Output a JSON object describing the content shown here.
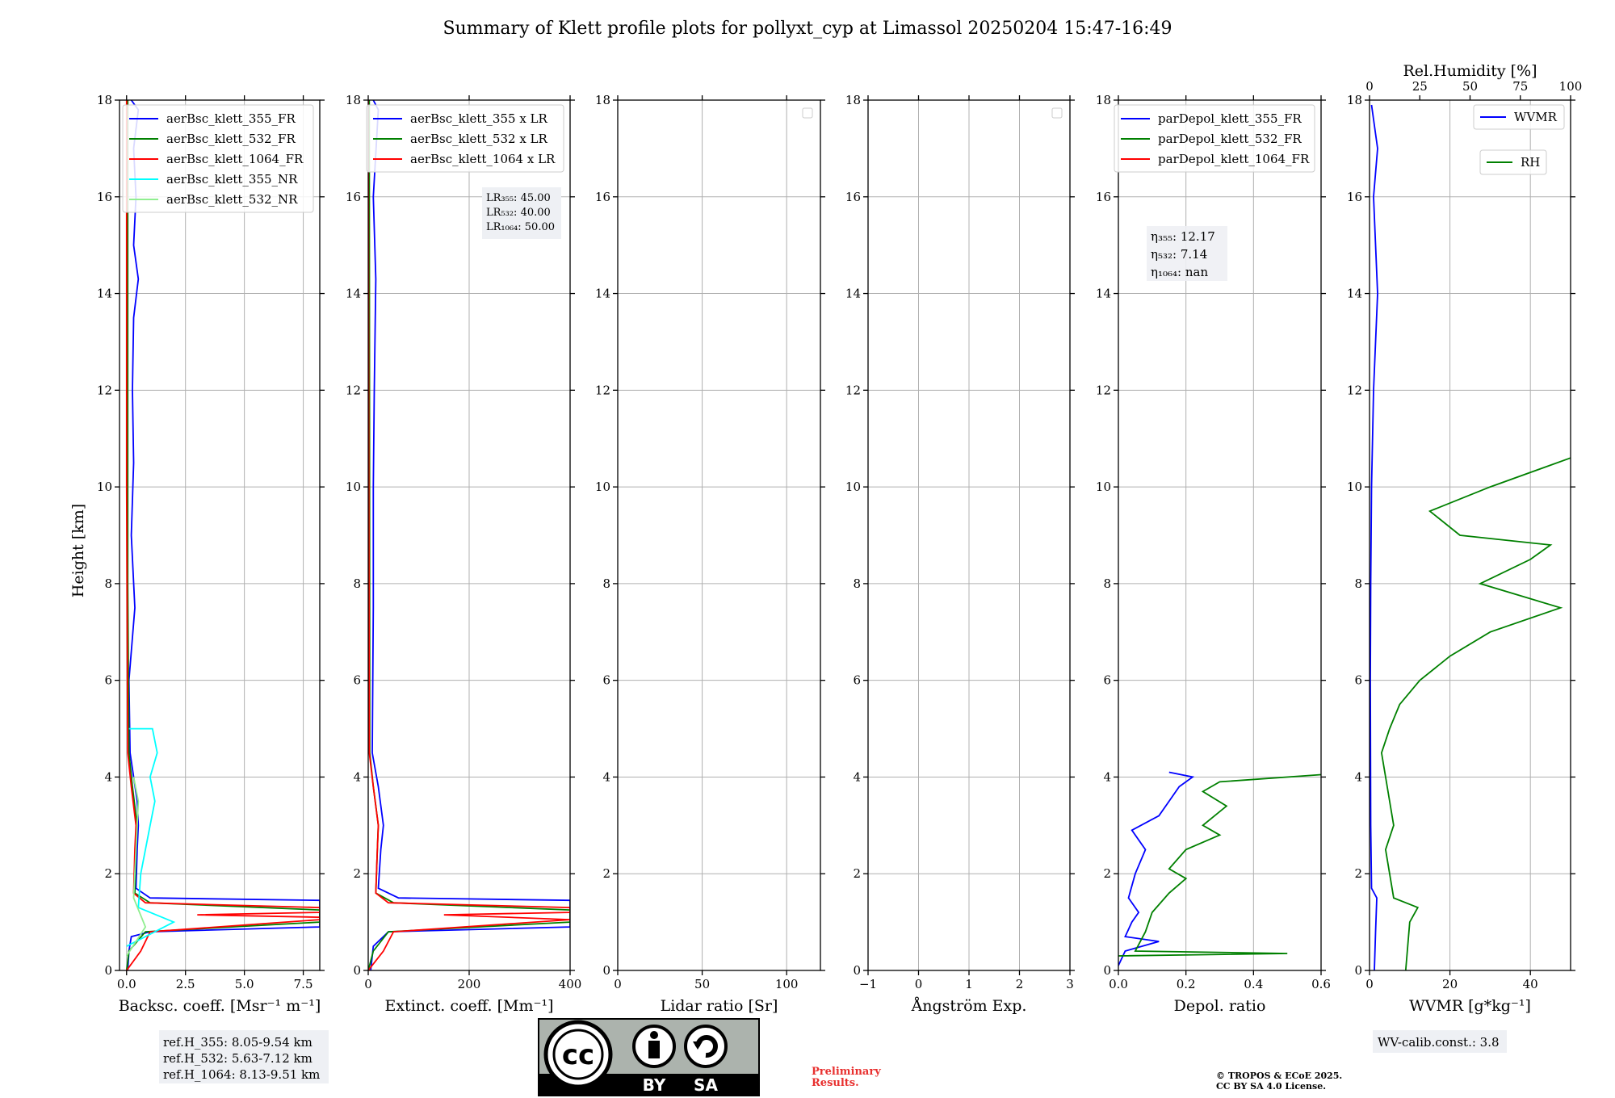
{
  "title": "Summary of Klett profile plots for pollyxt_cyp at Limassol 20250204 15:47-16:49",
  "colors": {
    "blue": "#0000ff",
    "green": "#008000",
    "red": "#ff0000",
    "cyan": "#00ffff",
    "lightgreen": "#90ee90"
  },
  "chart_data": [
    {
      "type": "line",
      "xlabel": "Backsc. coeff. [Msr⁻¹ m⁻¹]",
      "ylabel": "Height [km]",
      "xlim": [
        -0.3,
        8.2
      ],
      "ylim": [
        0,
        18
      ],
      "xticks": [
        0,
        2.5,
        5,
        7.5
      ],
      "xtick_labels": [
        "0.0",
        "2.5",
        "5.0",
        "7.5"
      ],
      "yticks": [
        0,
        2,
        4,
        6,
        8,
        10,
        12,
        14,
        16,
        18
      ],
      "grid": true,
      "legend_position": "upper right",
      "series": [
        {
          "name": "aerBsc_klett_355_FR",
          "color": "#0000ff",
          "points": [
            [
              0.05,
              0
            ],
            [
              0.1,
              0.4
            ],
            [
              0.2,
              0.7
            ],
            [
              1.0,
              0.8
            ],
            [
              8.2,
              0.9
            ],
            [
              8.2,
              1.45
            ],
            [
              1.0,
              1.5
            ],
            [
              0.4,
              1.7
            ],
            [
              0.45,
              2.5
            ],
            [
              0.5,
              3.0
            ],
            [
              0.45,
              3.5
            ],
            [
              0.3,
              4.0
            ],
            [
              0.15,
              4.5
            ],
            [
              0.1,
              6
            ],
            [
              0.35,
              7.5
            ],
            [
              0.2,
              9
            ],
            [
              0.3,
              10.5
            ],
            [
              0.25,
              12
            ],
            [
              0.3,
              13.5
            ],
            [
              0.5,
              14.3
            ],
            [
              0.3,
              15
            ],
            [
              0.4,
              16
            ],
            [
              0.3,
              17
            ],
            [
              0.5,
              17.8
            ],
            [
              0.2,
              18
            ]
          ]
        },
        {
          "name": "aerBsc_klett_532_FR",
          "color": "#008000",
          "points": [
            [
              0.0,
              0
            ],
            [
              0.1,
              0.4
            ],
            [
              0.8,
              0.8
            ],
            [
              8.2,
              1.0
            ],
            [
              8.2,
              1.25
            ],
            [
              1.0,
              1.4
            ],
            [
              0.35,
              1.6
            ],
            [
              0.4,
              2.5
            ],
            [
              0.45,
              3.0
            ],
            [
              0.25,
              3.8
            ],
            [
              0.1,
              4.5
            ],
            [
              0.05,
              8
            ],
            [
              0.05,
              18
            ]
          ]
        },
        {
          "name": "aerBsc_klett_1064_FR",
          "color": "#ff0000",
          "points": [
            [
              0.0,
              0
            ],
            [
              0.6,
              0.4
            ],
            [
              1.0,
              0.8
            ],
            [
              8.2,
              1.05
            ],
            [
              8.2,
              1.1
            ],
            [
              3.0,
              1.15
            ],
            [
              8.2,
              1.2
            ],
            [
              8.2,
              1.3
            ],
            [
              0.8,
              1.4
            ],
            [
              0.3,
              1.6
            ],
            [
              0.35,
              2.5
            ],
            [
              0.4,
              3.0
            ],
            [
              0.2,
              3.8
            ],
            [
              0.05,
              4.5
            ],
            [
              0.0,
              10
            ],
            [
              0.0,
              18
            ]
          ]
        },
        {
          "name": "aerBsc_klett_355_NR",
          "color": "#00ffff",
          "points": [
            [
              0.0,
              0.5
            ],
            [
              2.0,
              1.0
            ],
            [
              0.5,
              1.3
            ],
            [
              0.6,
              2.0
            ],
            [
              1.0,
              3.0
            ],
            [
              1.2,
              3.5
            ],
            [
              1.0,
              4.0
            ],
            [
              1.3,
              4.5
            ],
            [
              1.1,
              5.0
            ],
            [
              0.1,
              5.0
            ]
          ]
        },
        {
          "name": "aerBsc_klett_532_NR",
          "color": "#90ee90",
          "points": [
            [
              0.0,
              0.3
            ],
            [
              0.8,
              0.9
            ],
            [
              0.3,
              1.5
            ],
            [
              0.4,
              2.5
            ],
            [
              0.5,
              3.5
            ],
            [
              0.3,
              4.0
            ]
          ]
        }
      ],
      "annotation": [
        "ref.H_355: 8.05-9.54 km",
        "ref.H_532: 5.63-7.12 km",
        "ref.H_1064: 8.13-9.51 km"
      ]
    },
    {
      "type": "line",
      "xlabel": "Extinct. coeff. [Mm⁻¹]",
      "xlim": [
        0,
        400
      ],
      "ylim": [
        0,
        18
      ],
      "xticks": [
        0,
        200,
        400
      ],
      "xtick_labels": [
        "0",
        "200",
        "400"
      ],
      "yticks": [
        0,
        2,
        4,
        6,
        8,
        10,
        12,
        14,
        16,
        18
      ],
      "grid": true,
      "legend_position": "upper right",
      "series": [
        {
          "name": "aerBsc_klett_355 x LR",
          "color": "#0000ff",
          "points": [
            [
              5,
              0
            ],
            [
              10,
              0.5
            ],
            [
              40,
              0.8
            ],
            [
              400,
              0.9
            ],
            [
              400,
              1.45
            ],
            [
              60,
              1.5
            ],
            [
              20,
              1.7
            ],
            [
              25,
              2.5
            ],
            [
              30,
              3.0
            ],
            [
              20,
              3.8
            ],
            [
              8,
              4.5
            ],
            [
              10,
              7.5
            ],
            [
              10,
              10
            ],
            [
              12,
              12
            ],
            [
              15,
              14.3
            ],
            [
              10,
              16
            ],
            [
              20,
              17.8
            ],
            [
              10,
              18
            ]
          ]
        },
        {
          "name": "aerBsc_klett_532 x LR",
          "color": "#008000",
          "points": [
            [
              0,
              0
            ],
            [
              10,
              0.4
            ],
            [
              40,
              0.8
            ],
            [
              400,
              1.0
            ],
            [
              400,
              1.25
            ],
            [
              50,
              1.4
            ],
            [
              15,
              1.6
            ],
            [
              18,
              2.5
            ],
            [
              20,
              3.0
            ],
            [
              10,
              3.8
            ],
            [
              3,
              4.5
            ],
            [
              2,
              18
            ]
          ]
        },
        {
          "name": "aerBsc_klett_1064 x LR",
          "color": "#ff0000",
          "points": [
            [
              0,
              0
            ],
            [
              30,
              0.4
            ],
            [
              50,
              0.8
            ],
            [
              400,
              1.05
            ],
            [
              150,
              1.15
            ],
            [
              400,
              1.2
            ],
            [
              400,
              1.3
            ],
            [
              40,
              1.4
            ],
            [
              15,
              1.6
            ],
            [
              18,
              2.5
            ],
            [
              20,
              3.0
            ],
            [
              10,
              3.8
            ],
            [
              2,
              4.5
            ],
            [
              0,
              18
            ]
          ]
        }
      ],
      "lr_box": [
        "LR₃₅₅: 45.00",
        "LR₅₃₂: 40.00",
        "LR₁₀₆₄: 50.00"
      ]
    },
    {
      "type": "line",
      "xlabel": "Lidar ratio [Sr]",
      "xlim": [
        0,
        120
      ],
      "ylim": [
        0,
        18
      ],
      "xticks": [
        0,
        50,
        100
      ],
      "xtick_labels": [
        "0",
        "50",
        "100"
      ],
      "yticks": [
        0,
        2,
        4,
        6,
        8,
        10,
        12,
        14,
        16,
        18
      ],
      "grid": true,
      "series": []
    },
    {
      "type": "line",
      "xlabel": "Ångström Exp.",
      "xlim": [
        -1,
        3
      ],
      "ylim": [
        0,
        18
      ],
      "xticks": [
        -1,
        0,
        1,
        2,
        3
      ],
      "xtick_labels": [
        "−1",
        "0",
        "1",
        "2",
        "3"
      ],
      "yticks": [
        0,
        2,
        4,
        6,
        8,
        10,
        12,
        14,
        16,
        18
      ],
      "grid": true,
      "series": []
    },
    {
      "type": "line",
      "xlabel": "Depol. ratio",
      "xlim": [
        0,
        0.6
      ],
      "ylim": [
        0,
        18
      ],
      "xticks": [
        0,
        0.2,
        0.4,
        0.6
      ],
      "xtick_labels": [
        "0.0",
        "0.2",
        "0.4",
        "0.6"
      ],
      "yticks": [
        0,
        2,
        4,
        6,
        8,
        10,
        12,
        14,
        16,
        18
      ],
      "grid": true,
      "legend_position": "upper right",
      "series": [
        {
          "name": "parDepol_klett_355_FR",
          "color": "#0000ff",
          "points": [
            [
              0.0,
              0.1
            ],
            [
              0.02,
              0.4
            ],
            [
              0.12,
              0.6
            ],
            [
              0.02,
              0.7
            ],
            [
              0.04,
              1.0
            ],
            [
              0.06,
              1.2
            ],
            [
              0.03,
              1.5
            ],
            [
              0.05,
              2.0
            ],
            [
              0.08,
              2.5
            ],
            [
              0.04,
              2.9
            ],
            [
              0.12,
              3.2
            ],
            [
              0.15,
              3.5
            ],
            [
              0.18,
              3.8
            ],
            [
              0.22,
              4.0
            ],
            [
              0.15,
              4.1
            ]
          ]
        },
        {
          "name": "parDepol_klett_532_FR",
          "color": "#008000",
          "points": [
            [
              0.0,
              0.3
            ],
            [
              0.5,
              0.35
            ],
            [
              0.05,
              0.4
            ],
            [
              0.08,
              0.8
            ],
            [
              0.1,
              1.2
            ],
            [
              0.15,
              1.6
            ],
            [
              0.2,
              1.9
            ],
            [
              0.15,
              2.1
            ],
            [
              0.2,
              2.5
            ],
            [
              0.3,
              2.8
            ],
            [
              0.25,
              3.0
            ],
            [
              0.32,
              3.4
            ],
            [
              0.25,
              3.7
            ],
            [
              0.3,
              3.9
            ],
            [
              0.6,
              4.05
            ]
          ]
        },
        {
          "name": "parDepol_klett_1064_FR",
          "color": "#ff0000",
          "points": []
        }
      ],
      "eta_box": [
        "η₃₅₅: 12.17",
        "η₅₃₂: 7.14",
        "η₁₀₆₄: nan"
      ]
    },
    {
      "type": "line",
      "xlabel": "WVMR [g*kg⁻¹]",
      "x2label": "Rel.Humidity [%]",
      "xlim": [
        0,
        50
      ],
      "x2lim": [
        0,
        100
      ],
      "ylim": [
        0,
        18
      ],
      "xticks": [
        0,
        20,
        40
      ],
      "xtick_labels": [
        "0",
        "20",
        "40"
      ],
      "x2ticks": [
        0,
        25,
        50,
        75,
        100
      ],
      "x2tick_labels": [
        "0",
        "25",
        "50",
        "75",
        "100"
      ],
      "yticks": [
        0,
        2,
        4,
        6,
        8,
        10,
        12,
        14,
        16,
        18
      ],
      "grid": true,
      "legend_position": "upper right",
      "series": [
        {
          "name": "WVMR",
          "color": "#0000ff",
          "points": [
            [
              1.2,
              0
            ],
            [
              1.5,
              0.8
            ],
            [
              1.8,
              1.5
            ],
            [
              0.5,
              1.7
            ],
            [
              0.3,
              3
            ],
            [
              0.2,
              6
            ],
            [
              0.3,
              8
            ],
            [
              0.5,
              10
            ],
            [
              1,
              12
            ],
            [
              2,
              14
            ],
            [
              1,
              16
            ],
            [
              2,
              17
            ],
            [
              0.5,
              17.9
            ]
          ]
        },
        {
          "name": "RH",
          "color": "#008000",
          "axis": "x2",
          "points": [
            [
              18,
              0
            ],
            [
              19,
              0.5
            ],
            [
              20,
              1.0
            ],
            [
              24,
              1.3
            ],
            [
              12,
              1.5
            ],
            [
              10,
              2.0
            ],
            [
              8,
              2.5
            ],
            [
              12,
              3.0
            ],
            [
              10,
              3.5
            ],
            [
              8,
              4.0
            ],
            [
              6,
              4.5
            ],
            [
              10,
              5.0
            ],
            [
              15,
              5.5
            ],
            [
              25,
              6.0
            ],
            [
              40,
              6.5
            ],
            [
              60,
              7.0
            ],
            [
              95,
              7.5
            ],
            [
              55,
              8.0
            ],
            [
              80,
              8.5
            ],
            [
              90,
              8.8
            ],
            [
              45,
              9.0
            ],
            [
              30,
              9.5
            ],
            [
              60,
              10
            ],
            [
              100,
              10.6
            ]
          ]
        }
      ],
      "annotation": "WV-calib.const.: 3.8"
    }
  ],
  "license": {
    "cc": "cc",
    "by": "BY",
    "sa": "SA",
    "preliminary_1": "Preliminary",
    "preliminary_2": "Results.",
    "copyright_1": "© TROPOS & ECoE 2025.",
    "copyright_2": "CC BY SA 4.0 License."
  }
}
